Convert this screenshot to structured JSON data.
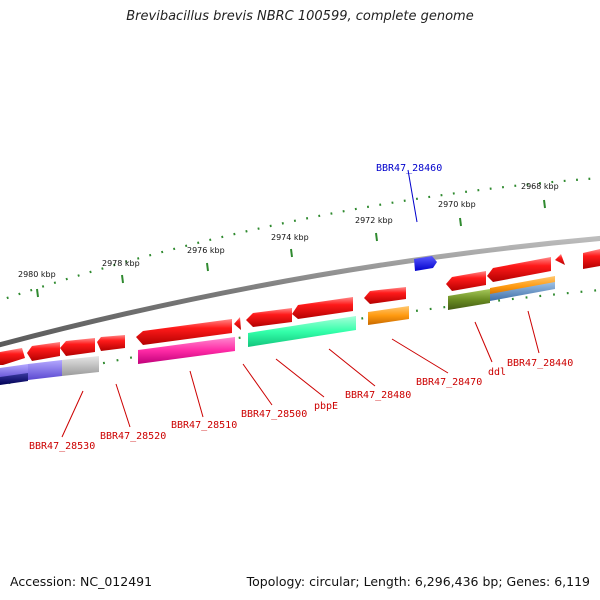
{
  "title": "Brevibacillus brevis NBRC 100599, complete genome",
  "footer": {
    "accession": "Accession: NC_012491",
    "info": "Topology: circular; Length: 6,296,436 bp; Genes: 6,119"
  },
  "colors": {
    "backbone": "#888888",
    "ticks": "#2f8a2f",
    "label_red": "#cc0000",
    "label_blue": "#0000cc"
  },
  "kbp_labels": [
    "2980 kbp",
    "2978 kbp",
    "2976 kbp",
    "2974 kbp",
    "2972 kbp",
    "2970 kbp",
    "2968 kbp"
  ],
  "gene_labels": [
    {
      "text": "BBR47_28460",
      "color": "blue"
    },
    {
      "text": "BBR47_28530",
      "color": "red"
    },
    {
      "text": "BBR47_28520",
      "color": "red"
    },
    {
      "text": "BBR47_28510",
      "color": "red"
    },
    {
      "text": "BBR47_28500",
      "color": "red"
    },
    {
      "text": "pbpE",
      "color": "red"
    },
    {
      "text": "BBR47_28480",
      "color": "red"
    },
    {
      "text": "BBR47_28470",
      "color": "red"
    },
    {
      "text": "ddl",
      "color": "red"
    },
    {
      "text": "BBR47_28440",
      "color": "red"
    }
  ]
}
